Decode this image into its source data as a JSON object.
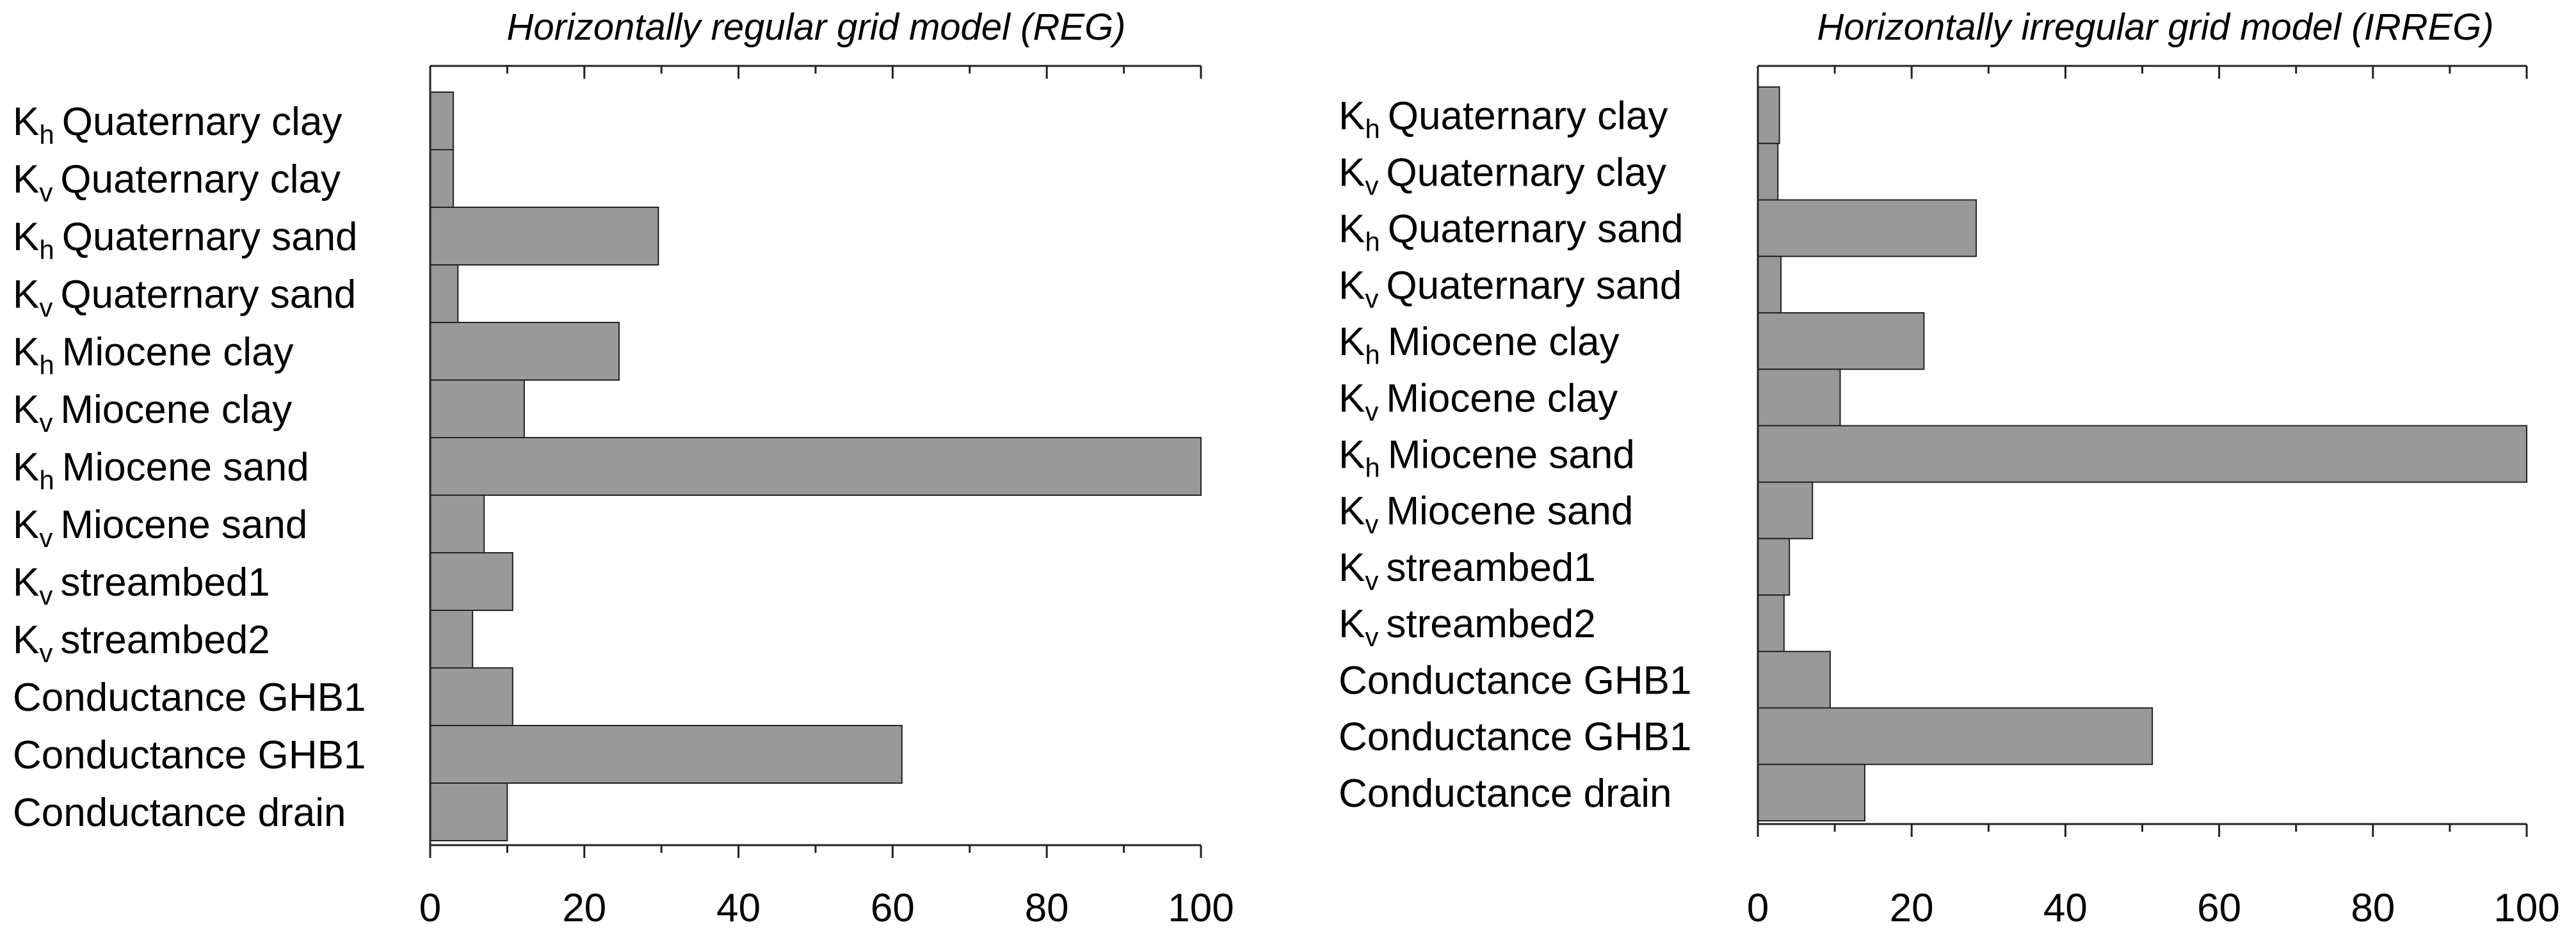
{
  "chart_data": [
    {
      "type": "barh",
      "title": "Horizontally regular grid model (REG)",
      "categories": [
        {
          "symbol": "K",
          "sub": "h",
          "text": "Quaternary clay"
        },
        {
          "symbol": "K",
          "sub": "v",
          "text": "Quaternary clay"
        },
        {
          "symbol": "K",
          "sub": "h",
          "text": "Quaternary sand"
        },
        {
          "symbol": "K",
          "sub": "v",
          "text": "Quaternary sand"
        },
        {
          "symbol": "K",
          "sub": "h",
          "text": "Miocene clay"
        },
        {
          "symbol": "K",
          "sub": "v",
          "text": "Miocene clay"
        },
        {
          "symbol": "K",
          "sub": "h",
          "text": "Miocene sand"
        },
        {
          "symbol": "K",
          "sub": "v",
          "text": "Miocene sand"
        },
        {
          "symbol": "K",
          "sub": "v",
          "text": "streambed1"
        },
        {
          "symbol": "K",
          "sub": "v",
          "text": "streambed2"
        },
        {
          "text": "Conductance GHB1"
        },
        {
          "text": "Conductance GHB1"
        },
        {
          "text": "Conductance drain"
        }
      ],
      "values": [
        3.0,
        3.0,
        29.6,
        3.6,
        24.5,
        12.2,
        100,
        7.0,
        10.7,
        5.5,
        10.7,
        61.2,
        10.0
      ],
      "color": "#999999",
      "xlim": [
        0,
        100
      ],
      "xticks": [
        0,
        20,
        40,
        60,
        80,
        100
      ],
      "minor_xticks": [
        10,
        30,
        50,
        70,
        90
      ]
    },
    {
      "type": "barh",
      "title": "Horizontally irregular grid model (IRREG)",
      "categories": [
        {
          "symbol": "K",
          "sub": "h",
          "text": "Quaternary clay"
        },
        {
          "symbol": "K",
          "sub": "v",
          "text": "Quaternary clay"
        },
        {
          "symbol": "K",
          "sub": "h",
          "text": "Quaternary sand"
        },
        {
          "symbol": "K",
          "sub": "v",
          "text": "Quaternary sand"
        },
        {
          "symbol": "K",
          "sub": "h",
          "text": "Miocene clay"
        },
        {
          "symbol": "K",
          "sub": "v",
          "text": "Miocene clay"
        },
        {
          "symbol": "K",
          "sub": "h",
          "text": "Miocene sand"
        },
        {
          "symbol": "K",
          "sub": "v",
          "text": "Miocene sand"
        },
        {
          "symbol": "K",
          "sub": "v",
          "text": "streambed1"
        },
        {
          "symbol": "K",
          "sub": "v",
          "text": "streambed2"
        },
        {
          "text": "Conductance GHB1"
        },
        {
          "text": "Conductance GHB1"
        },
        {
          "text": "Conductance drain"
        }
      ],
      "values": [
        2.8,
        2.6,
        28.4,
        3.0,
        21.6,
        10.7,
        100,
        7.1,
        4.1,
        3.4,
        9.4,
        51.3,
        13.9
      ],
      "color": "#999999",
      "xlim": [
        0,
        100
      ],
      "xticks": [
        0,
        20,
        40,
        60,
        80,
        100
      ],
      "minor_xticks": [
        10,
        30,
        50,
        70,
        90
      ]
    }
  ]
}
